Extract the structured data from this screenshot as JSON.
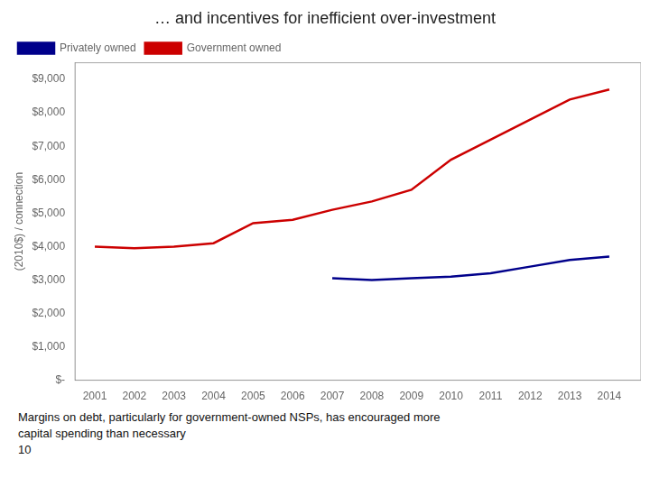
{
  "chart_data": {
    "type": "line",
    "title": "… and incentives for inefficient over-investment",
    "ylabel": "(2010$) / connection",
    "x": [
      2001,
      2002,
      2003,
      2004,
      2005,
      2006,
      2007,
      2008,
      2009,
      2010,
      2011,
      2012,
      2013,
      2014
    ],
    "series": [
      {
        "name": "Privately owned",
        "color": "#00008B",
        "values": [
          null,
          null,
          null,
          null,
          null,
          null,
          3050,
          3000,
          3050,
          3100,
          3200,
          3400,
          3600,
          3700
        ]
      },
      {
        "name": "Government owned",
        "color": "#CC0000",
        "values": [
          4000,
          3950,
          4000,
          4100,
          4700,
          4800,
          5100,
          5350,
          5700,
          6600,
          7200,
          7800,
          8400,
          8700
        ]
      }
    ],
    "xlim": [
      2000.5,
      2014.8
    ],
    "xticks": [
      2001,
      2002,
      2003,
      2004,
      2005,
      2006,
      2007,
      2008,
      2009,
      2010,
      2011,
      2012,
      2013,
      2014
    ],
    "ylim": [
      0,
      9500
    ],
    "yticks": [
      {
        "value": 0,
        "label": "$-"
      },
      {
        "value": 1000,
        "label": "$1,000"
      },
      {
        "value": 2000,
        "label": "$2,000"
      },
      {
        "value": 3000,
        "label": "$3,000"
      },
      {
        "value": 4000,
        "label": "$4,000"
      },
      {
        "value": 5000,
        "label": "$5,000"
      },
      {
        "value": 6000,
        "label": "$6,000"
      },
      {
        "value": 7000,
        "label": "$7,000"
      },
      {
        "value": 8000,
        "label": "$8,000"
      },
      {
        "value": 9000,
        "label": "$9,000"
      }
    ],
    "grid": false,
    "legend": "upper left",
    "annotations": [
      "Margins on debt, particularly for government-owned NSPs, has encouraged more",
      "capital spending than necessary",
      "10"
    ]
  }
}
